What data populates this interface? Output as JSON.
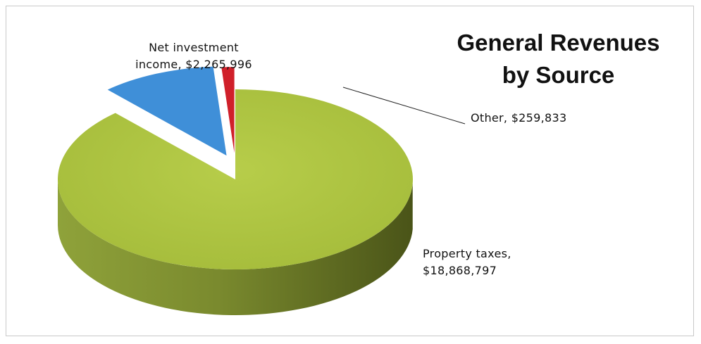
{
  "chart_data": {
    "type": "pie",
    "title": "General Revenues by Source",
    "style": "3d-exploded",
    "series": [
      {
        "name": "",
        "slices": [
          {
            "label": "Property taxes",
            "value": 18868797,
            "display": "Property taxes, $18,868,797",
            "color": "#a9c23f"
          },
          {
            "label": "Net investment income",
            "value": 2265996,
            "display": "Net investment income, $2,265,996",
            "color": "#3f8fd8"
          },
          {
            "label": "Other",
            "value": 259833,
            "display": "Other, $259,833",
            "color": "#d0202a"
          }
        ]
      }
    ],
    "legend": "none"
  },
  "labels": {
    "title_line1": "General Revenues",
    "title_line2": "by Source",
    "investment_line1": "Net investment",
    "investment_line2": "income, $2,265,996",
    "other": "Other, $259,833",
    "property_line1": "Property taxes,",
    "property_line2": "$18,868,797"
  }
}
